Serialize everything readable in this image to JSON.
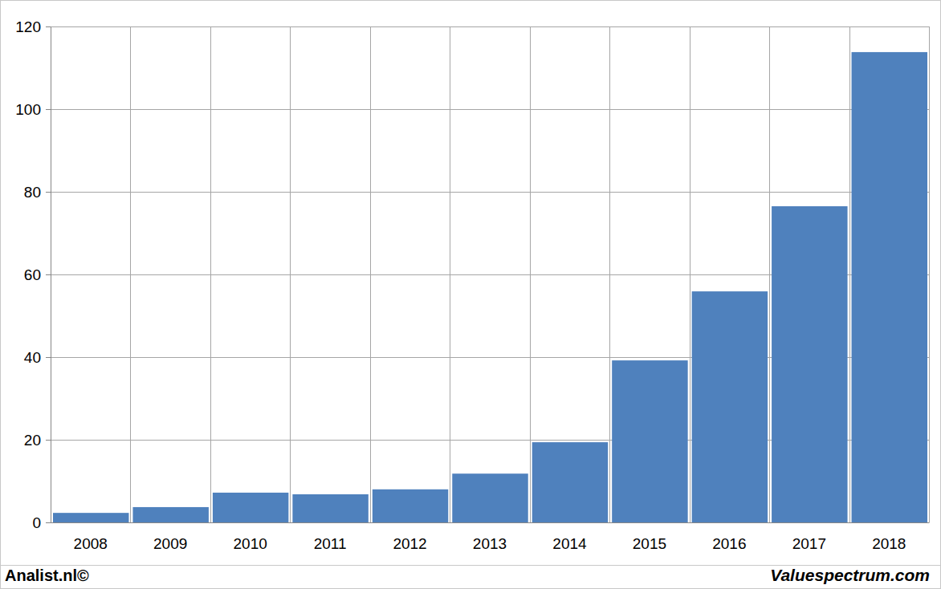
{
  "chart_data": {
    "type": "bar",
    "categories": [
      "2008",
      "2009",
      "2010",
      "2011",
      "2012",
      "2013",
      "2014",
      "2015",
      "2016",
      "2017",
      "2018"
    ],
    "values": [
      2.3,
      3.7,
      7.2,
      6.8,
      8.0,
      11.8,
      19.4,
      39.2,
      55.9,
      76.5,
      113.8
    ],
    "color": "#4f81bd",
    "ylim": [
      0,
      120
    ],
    "yticks": [
      0,
      20,
      40,
      60,
      80,
      100,
      120
    ],
    "grid": true,
    "annotations": [
      "Analist.nl©",
      "Valuespectrum.com"
    ]
  }
}
